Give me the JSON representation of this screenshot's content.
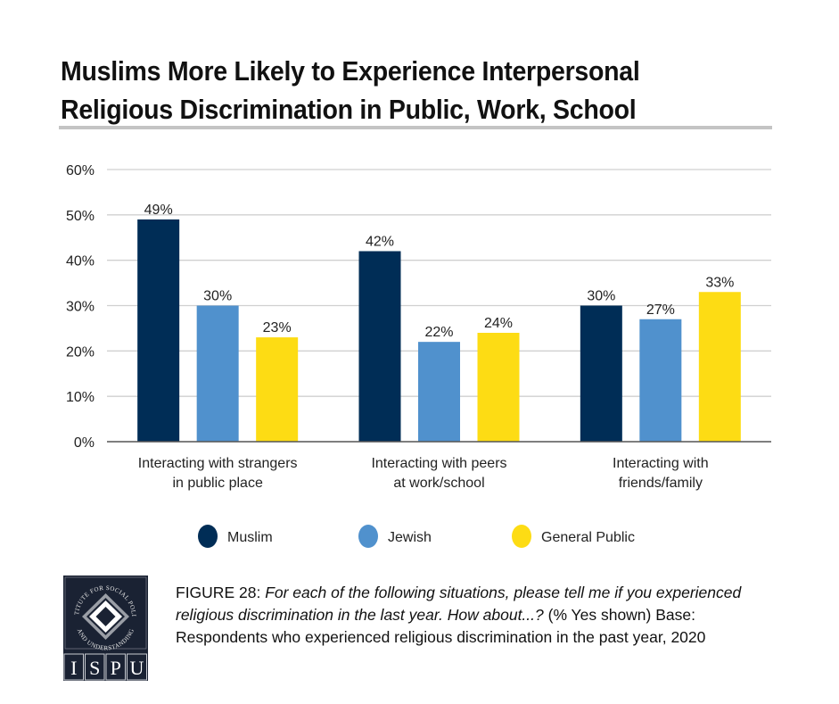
{
  "chart_data": {
    "type": "bar",
    "title": "Muslims More Likely to Experience Interpersonal Religious Discrimination in Public, Work, School",
    "title_lines": [
      "Muslims More Likely to Experience Interpersonal",
      "Religious Discrimination in Public, Work, School"
    ],
    "categories": [
      [
        "Interacting with strangers",
        "in public place"
      ],
      [
        "Interacting with peers",
        "at work/school"
      ],
      [
        "Interacting with",
        "friends/family"
      ]
    ],
    "series": [
      {
        "name": "Muslim",
        "color": "#002d56",
        "values": [
          49,
          42,
          30
        ]
      },
      {
        "name": "Jewish",
        "color": "#5091cd",
        "values": [
          30,
          22,
          27
        ]
      },
      {
        "name": "General Public",
        "color": "#fddc14",
        "values": [
          23,
          24,
          33
        ]
      }
    ],
    "value_suffix": "%",
    "xlabel": "",
    "ylabel": "",
    "ylim": [
      0,
      60
    ],
    "yticks": [
      0,
      10,
      20,
      30,
      40,
      50,
      60
    ],
    "ytick_labels": [
      "0%",
      "10%",
      "20%",
      "30%",
      "40%",
      "50%",
      "60%"
    ],
    "grid": true,
    "legend_position": "bottom"
  },
  "caption": {
    "figure_label": "FIGURE 28",
    "separator": ": ",
    "question": "For each of the following situations, please tell me if you experienced religious discrimination in the last year. How about...?",
    "note": " (% Yes shown) Base: Respondents who experienced religious discrimination in the past year, 2020"
  },
  "logo": {
    "arc_text": "INSTITUTE FOR SOCIAL POLICY AND UNDERSTANDING",
    "letters": [
      "I",
      "S",
      "P",
      "U"
    ]
  },
  "colors": {
    "grid": "#d0d0d0",
    "axis": "#555555",
    "rule": "#c4c4c4",
    "logo_bg": "#1a2233"
  }
}
